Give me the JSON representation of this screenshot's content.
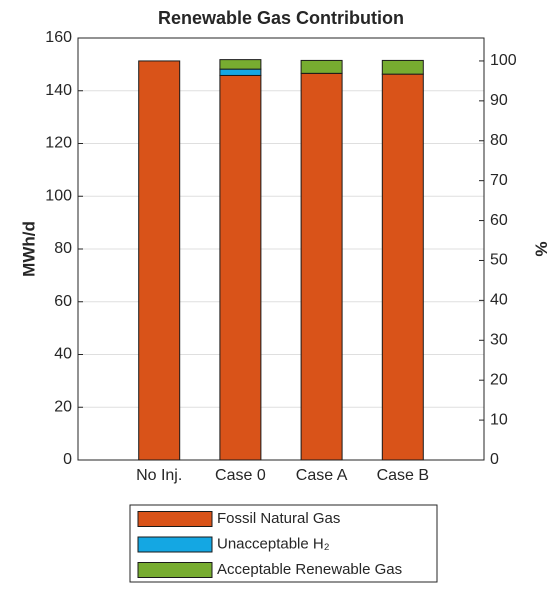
{
  "chart_data": {
    "type": "stacked-bar",
    "title": "Renewable Gas Contribution",
    "ylabel": "MWh/d",
    "y2label": "%",
    "categories": [
      "No Inj.",
      "Case 0",
      "Case A",
      "Case B"
    ],
    "series": [
      {
        "name": "Fossil Natural Gas",
        "color": "#d95319",
        "values": [
          151.3,
          145.8,
          146.6,
          146.3
        ]
      },
      {
        "name": "Unacceptable H₂",
        "color": "#14a7e3",
        "values": [
          0,
          2.4,
          0,
          0
        ]
      },
      {
        "name": "Acceptable Renewable Gas",
        "color": "#77ac30",
        "values": [
          0,
          3.6,
          4.9,
          5.2
        ]
      }
    ],
    "ylim": [
      0,
      160
    ],
    "yticks": [
      0,
      20,
      40,
      60,
      80,
      100,
      120,
      140,
      160
    ],
    "y2lim": [
      0,
      105.75
    ],
    "y2ticks": [
      0,
      10,
      20,
      30,
      40,
      50,
      60,
      70,
      80,
      90,
      100
    ],
    "grid": true
  }
}
